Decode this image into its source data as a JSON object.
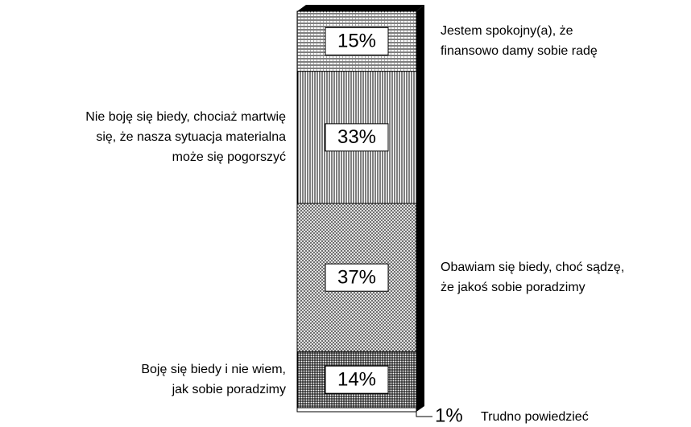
{
  "chart_data": {
    "type": "bar",
    "categories": [
      [
        "Jestem spokojny(a), że",
        "finansowo damy sobie radę"
      ],
      [
        "Nie boję się biedy, chociaż martwię",
        "się, że nasza sytuacja materialna",
        "może się pogorszyć"
      ],
      [
        "Obawiam się biedy, choć sądzę,",
        "że jakoś sobie poradzimy"
      ],
      [
        "Boję się biedy i nie wiem,",
        "jak sobie poradzimy"
      ],
      [
        "Trudno powiedzieć"
      ]
    ],
    "values": [
      15,
      33,
      37,
      14,
      1
    ],
    "value_labels": [
      "15%",
      "33%",
      "37%",
      "14%",
      "1%"
    ]
  }
}
